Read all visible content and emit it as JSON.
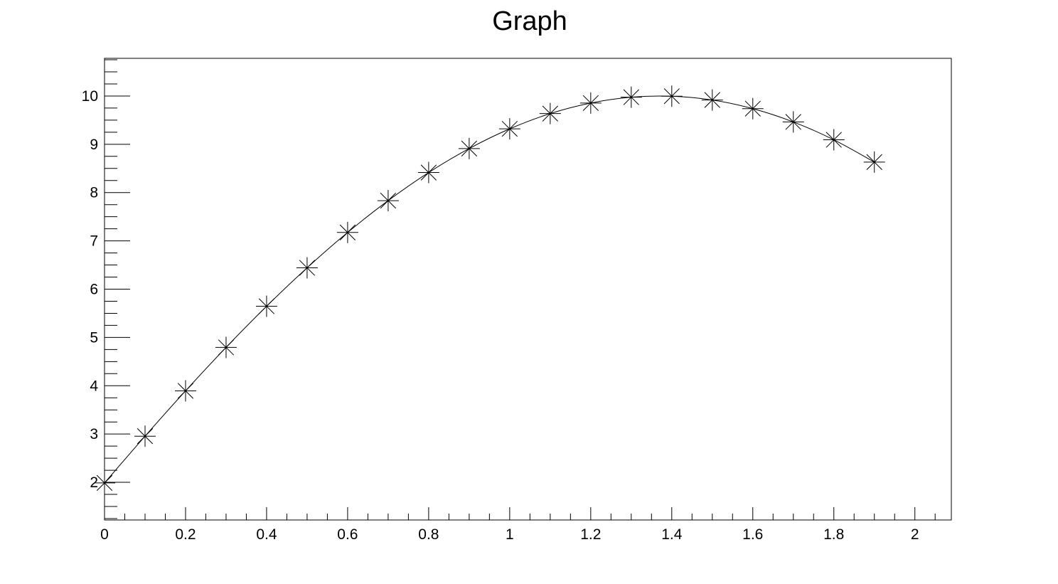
{
  "chart_data": {
    "type": "line",
    "title": "Graph",
    "xlabel": "",
    "ylabel": "",
    "xlim": [
      0,
      2.09
    ],
    "ylim": [
      1.22,
      10.78
    ],
    "x_ticks": [
      0,
      0.2,
      0.4,
      0.6,
      0.8,
      1,
      1.2,
      1.4,
      1.6,
      1.8,
      2
    ],
    "x_tick_labels": [
      "0",
      "0.2",
      "0.4",
      "0.6",
      "0.8",
      "1",
      "1.2",
      "1.4",
      "1.6",
      "1.8",
      "2"
    ],
    "y_ticks": [
      2,
      3,
      4,
      5,
      6,
      7,
      8,
      9,
      10
    ],
    "y_tick_labels": [
      "2",
      "3",
      "4",
      "5",
      "6",
      "7",
      "8",
      "9",
      "10"
    ],
    "grid": false,
    "marker": "asterisk",
    "line": "smooth",
    "color": "#000000",
    "x": [
      0,
      0.1,
      0.2,
      0.3,
      0.4,
      0.5,
      0.6,
      0.7,
      0.8,
      0.9,
      1.0,
      1.1,
      1.2,
      1.3,
      1.4,
      1.5,
      1.6,
      1.7,
      1.8,
      1.9
    ],
    "y": [
      1.987,
      2.955,
      3.894,
      4.794,
      5.646,
      6.442,
      7.174,
      7.833,
      8.415,
      8.912,
      9.32,
      9.636,
      9.854,
      9.975,
      9.996,
      9.917,
      9.738,
      9.463,
      9.093,
      8.632
    ]
  }
}
